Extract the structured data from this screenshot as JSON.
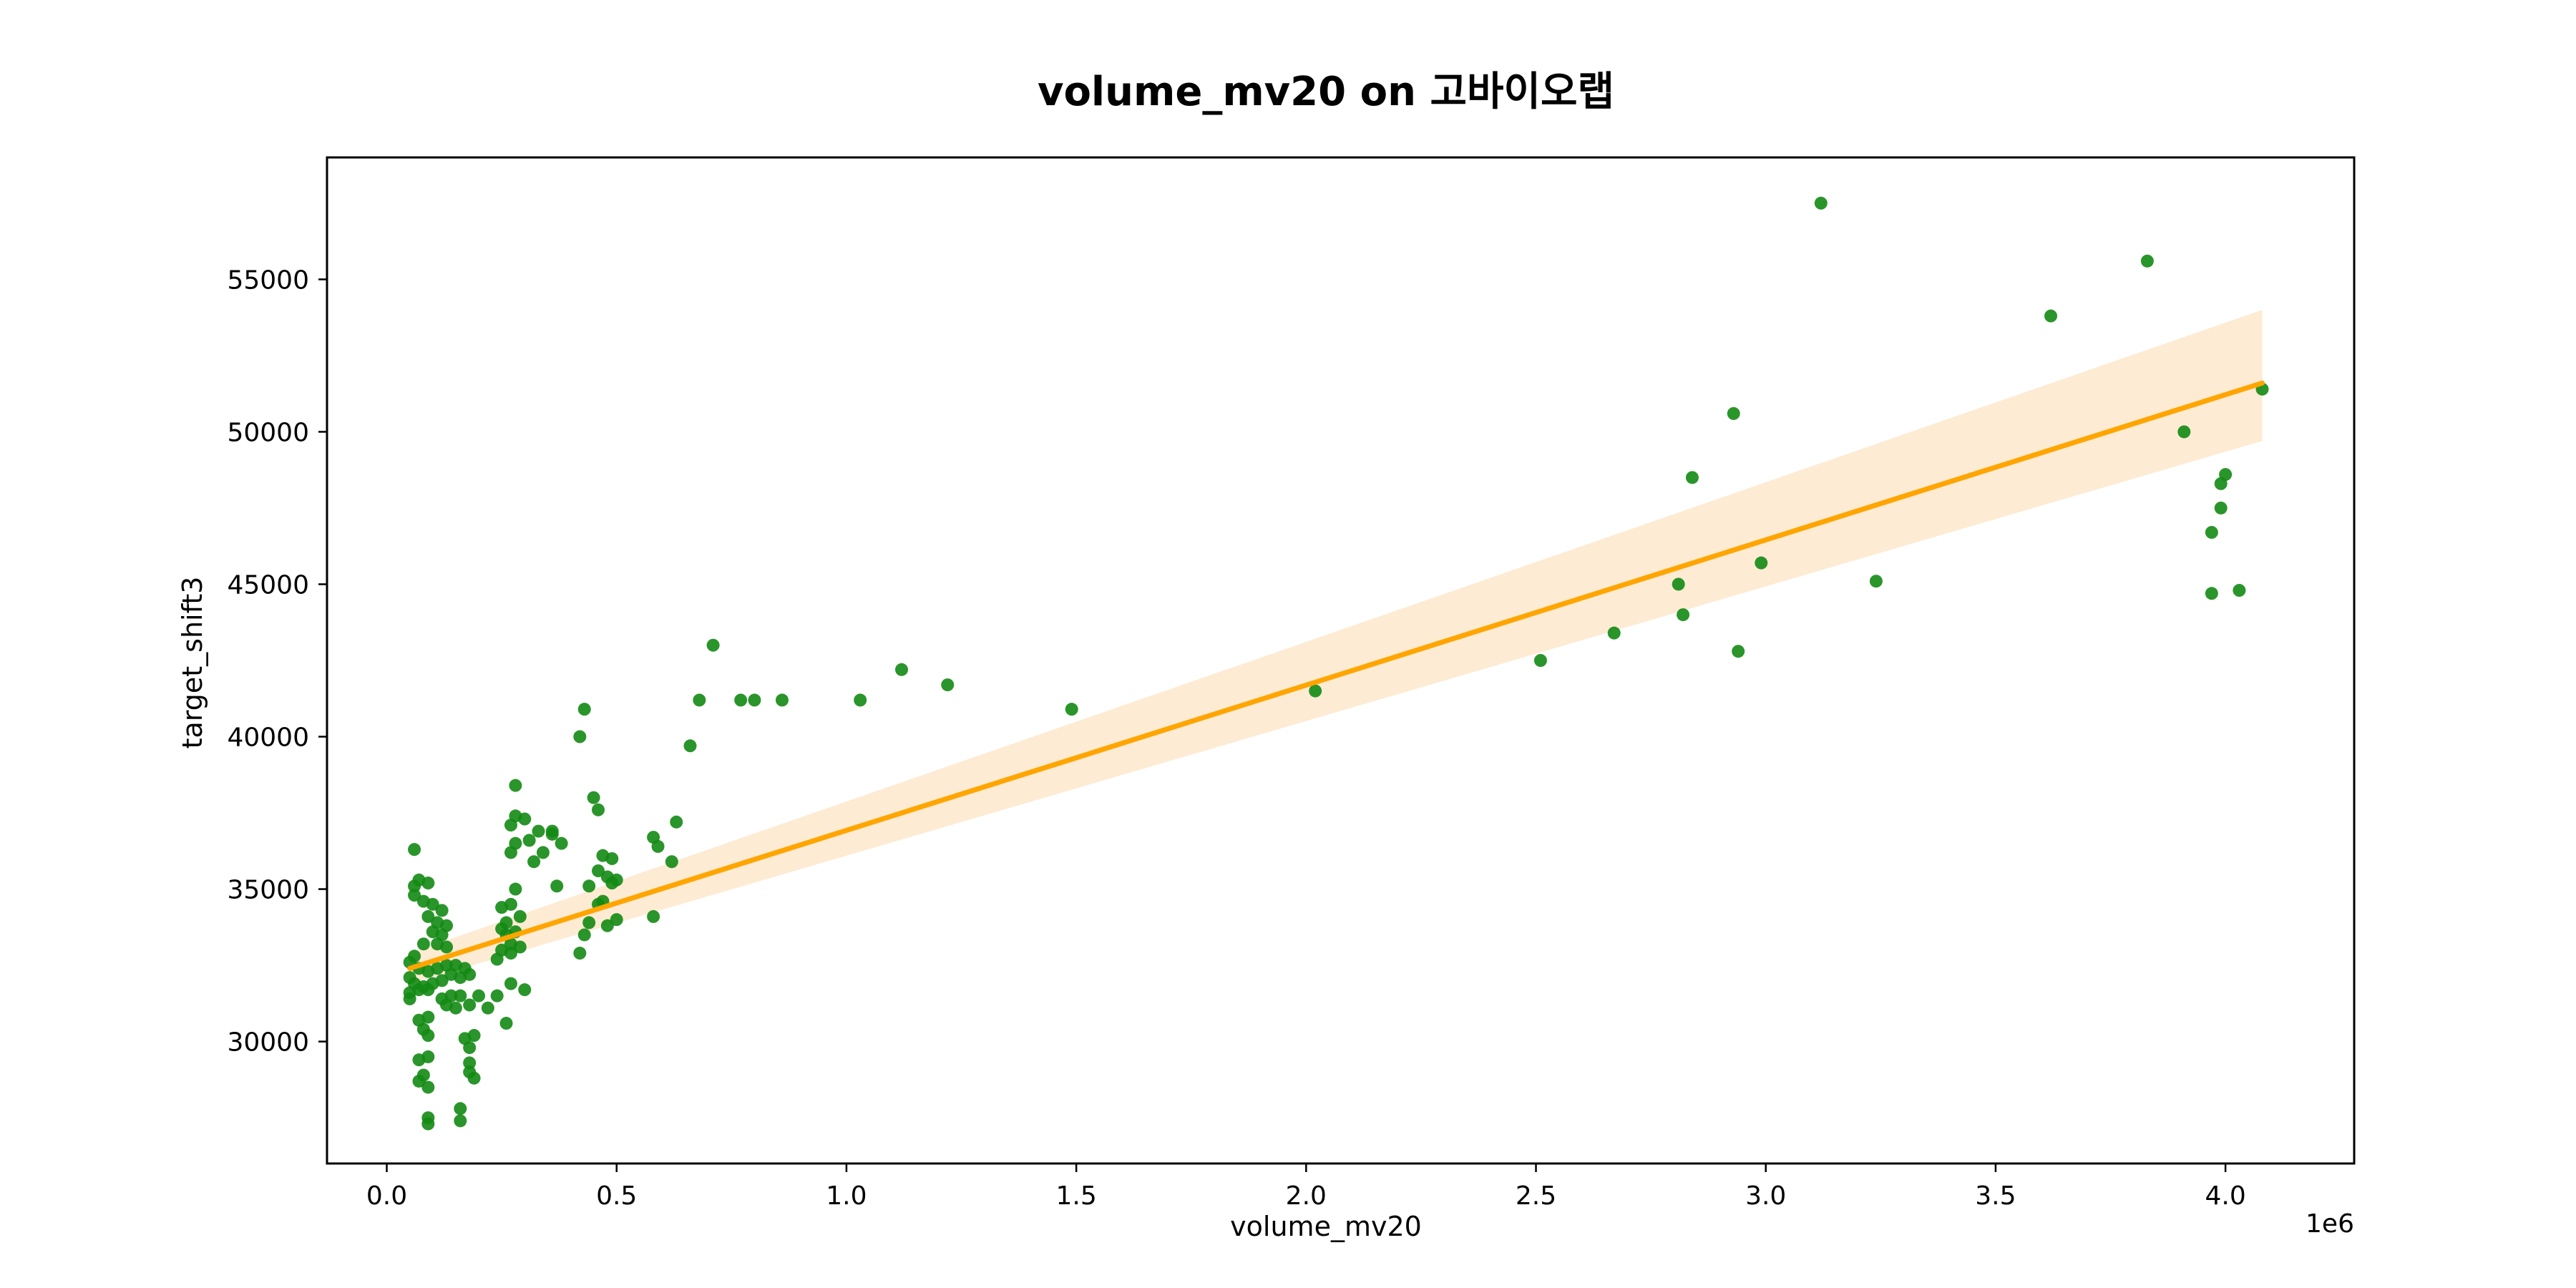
{
  "chart_data": {
    "type": "scatter",
    "title": "volume_mv20 on 고바이오랩",
    "xlabel": "volume_mv20",
    "ylabel": "target_shift3",
    "x_offset_text": "1e6",
    "xlim": [
      -0.13,
      4.28
    ],
    "ylim": [
      26000,
      59000
    ],
    "xticks": [
      0.0,
      0.5,
      1.0,
      1.5,
      2.0,
      2.5,
      3.0,
      3.5,
      4.0
    ],
    "xtick_labels": [
      "0.0",
      "0.5",
      "1.0",
      "1.5",
      "2.0",
      "2.5",
      "3.0",
      "3.5",
      "4.0"
    ],
    "yticks": [
      30000,
      35000,
      40000,
      45000,
      50000,
      55000
    ],
    "ytick_labels": [
      "30000",
      "35000",
      "40000",
      "45000",
      "50000",
      "55000"
    ],
    "grid": false,
    "scatter": {
      "color": "#138a13",
      "points": [
        [
          0.06,
          36.3
        ],
        [
          0.06,
          35.1
        ],
        [
          0.07,
          35.3
        ],
        [
          0.09,
          35.2
        ],
        [
          0.06,
          34.8
        ],
        [
          0.08,
          34.6
        ],
        [
          0.1,
          34.5
        ],
        [
          0.12,
          34.3
        ],
        [
          0.09,
          34.1
        ],
        [
          0.11,
          33.9
        ],
        [
          0.13,
          33.8
        ],
        [
          0.12,
          33.5
        ],
        [
          0.1,
          33.6
        ],
        [
          0.08,
          33.2
        ],
        [
          0.11,
          33.2
        ],
        [
          0.13,
          33.1
        ],
        [
          0.06,
          32.8
        ],
        [
          0.05,
          32.6
        ],
        [
          0.07,
          32.4
        ],
        [
          0.09,
          32.3
        ],
        [
          0.11,
          32.4
        ],
        [
          0.13,
          32.5
        ],
        [
          0.15,
          32.5
        ],
        [
          0.17,
          32.4
        ],
        [
          0.14,
          32.2
        ],
        [
          0.16,
          32.1
        ],
        [
          0.18,
          32.2
        ],
        [
          0.05,
          32.1
        ],
        [
          0.06,
          31.9
        ],
        [
          0.08,
          31.8
        ],
        [
          0.1,
          31.9
        ],
        [
          0.12,
          32.0
        ],
        [
          0.05,
          31.6
        ],
        [
          0.07,
          31.7
        ],
        [
          0.09,
          31.7
        ],
        [
          0.05,
          31.4
        ],
        [
          0.12,
          31.4
        ],
        [
          0.14,
          31.5
        ],
        [
          0.16,
          31.5
        ],
        [
          0.13,
          31.2
        ],
        [
          0.15,
          31.1
        ],
        [
          0.18,
          31.2
        ],
        [
          0.2,
          31.5
        ],
        [
          0.22,
          31.1
        ],
        [
          0.24,
          31.5
        ],
        [
          0.07,
          30.7
        ],
        [
          0.09,
          30.8
        ],
        [
          0.08,
          30.4
        ],
        [
          0.09,
          30.2
        ],
        [
          0.17,
          30.1
        ],
        [
          0.18,
          29.8
        ],
        [
          0.19,
          30.2
        ],
        [
          0.07,
          29.4
        ],
        [
          0.09,
          29.5
        ],
        [
          0.18,
          29.3
        ],
        [
          0.18,
          29.0
        ],
        [
          0.08,
          28.9
        ],
        [
          0.07,
          28.7
        ],
        [
          0.09,
          28.5
        ],
        [
          0.19,
          28.8
        ],
        [
          0.09,
          27.5
        ],
        [
          0.09,
          27.3
        ],
        [
          0.16,
          27.8
        ],
        [
          0.16,
          27.4
        ],
        [
          0.24,
          32.7
        ],
        [
          0.25,
          33.0
        ],
        [
          0.27,
          33.2
        ],
        [
          0.26,
          33.5
        ],
        [
          0.25,
          33.7
        ],
        [
          0.26,
          33.9
        ],
        [
          0.28,
          33.6
        ],
        [
          0.27,
          32.9
        ],
        [
          0.25,
          34.4
        ],
        [
          0.27,
          34.5
        ],
        [
          0.29,
          34.1
        ],
        [
          0.28,
          35.0
        ],
        [
          0.29,
          33.1
        ],
        [
          0.27,
          31.9
        ],
        [
          0.3,
          31.7
        ],
        [
          0.28,
          36.5
        ],
        [
          0.27,
          37.1
        ],
        [
          0.28,
          37.4
        ],
        [
          0.3,
          37.3
        ],
        [
          0.27,
          36.2
        ],
        [
          0.31,
          36.6
        ],
        [
          0.33,
          36.9
        ],
        [
          0.32,
          35.9
        ],
        [
          0.34,
          36.2
        ],
        [
          0.36,
          36.8
        ],
        [
          0.36,
          36.9
        ],
        [
          0.38,
          36.5
        ],
        [
          0.37,
          35.1
        ],
        [
          0.28,
          38.4
        ],
        [
          0.26,
          30.6
        ],
        [
          0.42,
          40.0
        ],
        [
          0.43,
          40.9
        ],
        [
          0.45,
          38.0
        ],
        [
          0.46,
          37.6
        ],
        [
          0.43,
          33.5
        ],
        [
          0.42,
          32.9
        ],
        [
          0.44,
          35.1
        ],
        [
          0.44,
          33.9
        ],
        [
          0.46,
          35.6
        ],
        [
          0.47,
          36.1
        ],
        [
          0.48,
          35.4
        ],
        [
          0.49,
          35.2
        ],
        [
          0.47,
          34.6
        ],
        [
          0.48,
          33.8
        ],
        [
          0.5,
          34.0
        ],
        [
          0.5,
          35.3
        ],
        [
          0.49,
          36.0
        ],
        [
          0.46,
          34.5
        ],
        [
          0.58,
          36.7
        ],
        [
          0.59,
          36.4
        ],
        [
          0.62,
          35.9
        ],
        [
          0.58,
          34.1
        ],
        [
          0.63,
          37.2
        ],
        [
          0.66,
          39.7
        ],
        [
          0.68,
          41.2
        ],
        [
          0.71,
          43.0
        ],
        [
          0.77,
          41.2
        ],
        [
          0.8,
          41.2
        ],
        [
          0.86,
          41.2
        ],
        [
          1.03,
          41.2
        ],
        [
          1.12,
          42.2
        ],
        [
          1.22,
          41.7
        ],
        [
          1.49,
          40.9
        ],
        [
          2.02,
          41.5
        ],
        [
          2.51,
          42.5
        ],
        [
          2.67,
          43.4
        ],
        [
          2.81,
          45.0
        ],
        [
          2.82,
          44.0
        ],
        [
          2.84,
          48.5
        ],
        [
          2.93,
          50.6
        ],
        [
          2.94,
          42.8
        ],
        [
          2.99,
          45.7
        ],
        [
          3.12,
          57.5
        ],
        [
          3.24,
          45.1
        ],
        [
          3.62,
          53.8
        ],
        [
          3.83,
          55.6
        ],
        [
          3.91,
          50.0
        ],
        [
          3.97,
          44.7
        ],
        [
          3.97,
          46.7
        ],
        [
          3.99,
          47.5
        ],
        [
          3.99,
          48.3
        ],
        [
          4.0,
          48.6
        ],
        [
          4.03,
          44.8
        ],
        [
          4.08,
          51.4
        ]
      ]
    },
    "regression": {
      "color": "#ffa500",
      "band_color": "#fdebd3",
      "x": [
        0.05,
        4.08
      ],
      "y": [
        32400,
        51600
      ],
      "ci_upper": [
        32900,
        54000
      ],
      "ci_lower": [
        31900,
        49700
      ]
    }
  }
}
